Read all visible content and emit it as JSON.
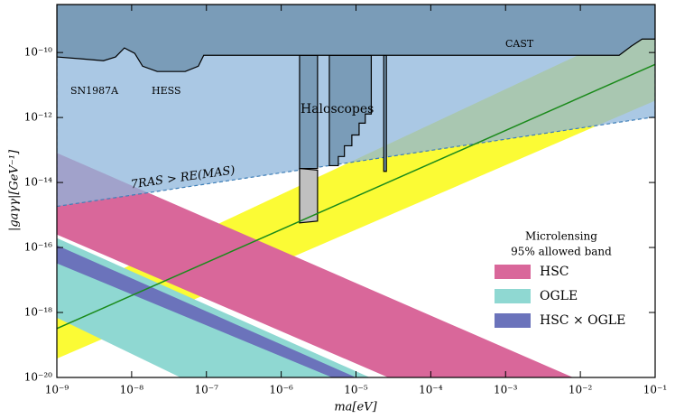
{
  "chart_data": {
    "type": "area",
    "log_x": true,
    "log_y": true,
    "x_label": "ma[eV]",
    "y_label": "|gaγγ|[GeV⁻¹]",
    "xlim": [
      1e-09,
      0.1
    ],
    "ylim": [
      1e-20,
      3e-09
    ],
    "xticks": [
      {
        "value": 1e-09,
        "label": "10⁻⁹"
      },
      {
        "value": 1e-08,
        "label": "10⁻⁸"
      },
      {
        "value": 1e-07,
        "label": "10⁻⁷"
      },
      {
        "value": 1e-06,
        "label": "10⁻⁶"
      },
      {
        "value": 1e-05,
        "label": "10⁻⁵"
      },
      {
        "value": 0.0001,
        "label": "10⁻⁴"
      },
      {
        "value": 0.001,
        "label": "10⁻³"
      },
      {
        "value": 0.01,
        "label": "10⁻²"
      },
      {
        "value": 0.1,
        "label": "10⁻¹"
      }
    ],
    "yticks": [
      {
        "value": 1e-20,
        "label": "10⁻²⁰"
      },
      {
        "value": 1e-18,
        "label": "10⁻¹⁸"
      },
      {
        "value": 1e-16,
        "label": "10⁻¹⁶"
      },
      {
        "value": 1e-14,
        "label": "10⁻¹⁴"
      },
      {
        "value": 1e-12,
        "label": "10⁻¹²"
      },
      {
        "value": 1e-10,
        "label": "10⁻¹⁰"
      }
    ],
    "annotations": [
      "SN1987A",
      "HESS",
      "CAST",
      "Haloscopes",
      "7RAS > RE(MAS)"
    ],
    "legend_title": [
      "Microlensing",
      "95% allowed band"
    ],
    "legend_position": "lower right",
    "series": [
      {
        "color": "#fbfb35",
        "x": [
          1e-09,
          0.1,
          0.1,
          1e-09
        ],
        "values": [
          2.5e-18,
          1.07e-09,
          3.3e-12,
          3.8e-20
        ]
      },
      {
        "name": "HSC",
        "color": "#d9679a",
        "x": [
          1e-09,
          0.008,
          2.7e-05,
          1e-09
        ],
        "values": [
          8.1e-14,
          1e-20,
          1e-20,
          2.5e-16
        ]
      },
      {
        "name": "OGLE",
        "color": "#8fd8d2",
        "x": [
          1e-09,
          1.53e-05,
          4.5e-08,
          1e-09
        ],
        "values": [
          1.95e-16,
          1e-20,
          1e-20,
          6.9e-19
        ]
      },
      {
        "name": "HSC × OGLE",
        "color": "#6b73bb",
        "x": [
          1e-09,
          1e-05,
          4.8e-06,
          1e-09
        ],
        "values": [
          1.17e-16,
          1e-20,
          1e-20,
          3.25e-17
        ]
      },
      {
        "color": "#8db6db",
        "opacity": 0.75,
        "stroke": "#3f7fb8",
        "dashed": true,
        "x": [
          1e-09,
          0.1,
          0.1,
          1e-09
        ],
        "values": [
          1.84e-15,
          1.05e-12,
          3e-09,
          3e-09
        ]
      },
      {
        "color": "#c0c0c0",
        "stroke": "#000000",
        "x": [
          1.76e-06,
          3.06e-06,
          3.06e-06,
          1.76e-06
        ],
        "values": [
          2.7e-14,
          2.4e-14,
          6.5e-16,
          5.7e-16
        ]
      },
      {
        "color": "#7a9cb8",
        "stroke": "#000000",
        "x": [
          1.76e-06,
          3.06e-06,
          3.06e-06,
          1.76e-06
        ],
        "values": [
          8.2e-11,
          8.2e-11,
          2.7e-14,
          2.7e-14
        ]
      },
      {
        "color": "#7a9cb8",
        "stroke": "#000000",
        "x": [
          4.4e-06,
          1.6e-05,
          1.6e-05,
          1.33e-05,
          1.33e-05,
          1.1e-05,
          1.1e-05,
          8.8e-06,
          8.8e-06,
          7e-06,
          7e-06,
          5.8e-06,
          5.8e-06,
          4.4e-06
        ],
        "values": [
          8.2e-11,
          8.2e-11,
          1.28e-12,
          1.28e-12,
          6.7e-13,
          6.7e-13,
          2.9e-13,
          2.9e-13,
          1.35e-13,
          1.35e-13,
          6.3e-14,
          6.3e-14,
          3.3e-14,
          3.3e-14
        ]
      },
      {
        "color": "#7a9cb8",
        "stroke": "#000000",
        "x": [
          2.35e-05,
          2.55e-05,
          2.55e-05,
          2.35e-05
        ],
        "values": [
          8.2e-11,
          8.2e-11,
          2.2e-14,
          2.2e-14
        ]
      },
      {
        "color": "#7a9cb8",
        "stroke": "#000000",
        "x": [
          1e-09,
          2.1e-09,
          4.2e-09,
          6.1e-09,
          8e-09,
          1.1e-08,
          1.4e-08,
          2.2e-08,
          5.2e-08,
          7.8e-08,
          9.2e-08,
          0.033,
          0.048,
          0.067,
          0.1,
          0.1,
          1e-09
        ],
        "values": [
          7.3e-11,
          6.4e-11,
          5.6e-11,
          7.3e-11,
          1.38e-10,
          9.4e-11,
          3.8e-11,
          2.6e-11,
          2.6e-11,
          3.8e-11,
          8.2e-11,
          8.2e-11,
          1.57e-10,
          2.6e-10,
          2.6e-10,
          3e-09,
          3e-09
        ]
      },
      {
        "style": "line",
        "color": "#1a8a1a",
        "x": [
          1e-09,
          0.1
        ],
        "values": [
          3.2e-19,
          4.3e-11
        ]
      }
    ]
  }
}
